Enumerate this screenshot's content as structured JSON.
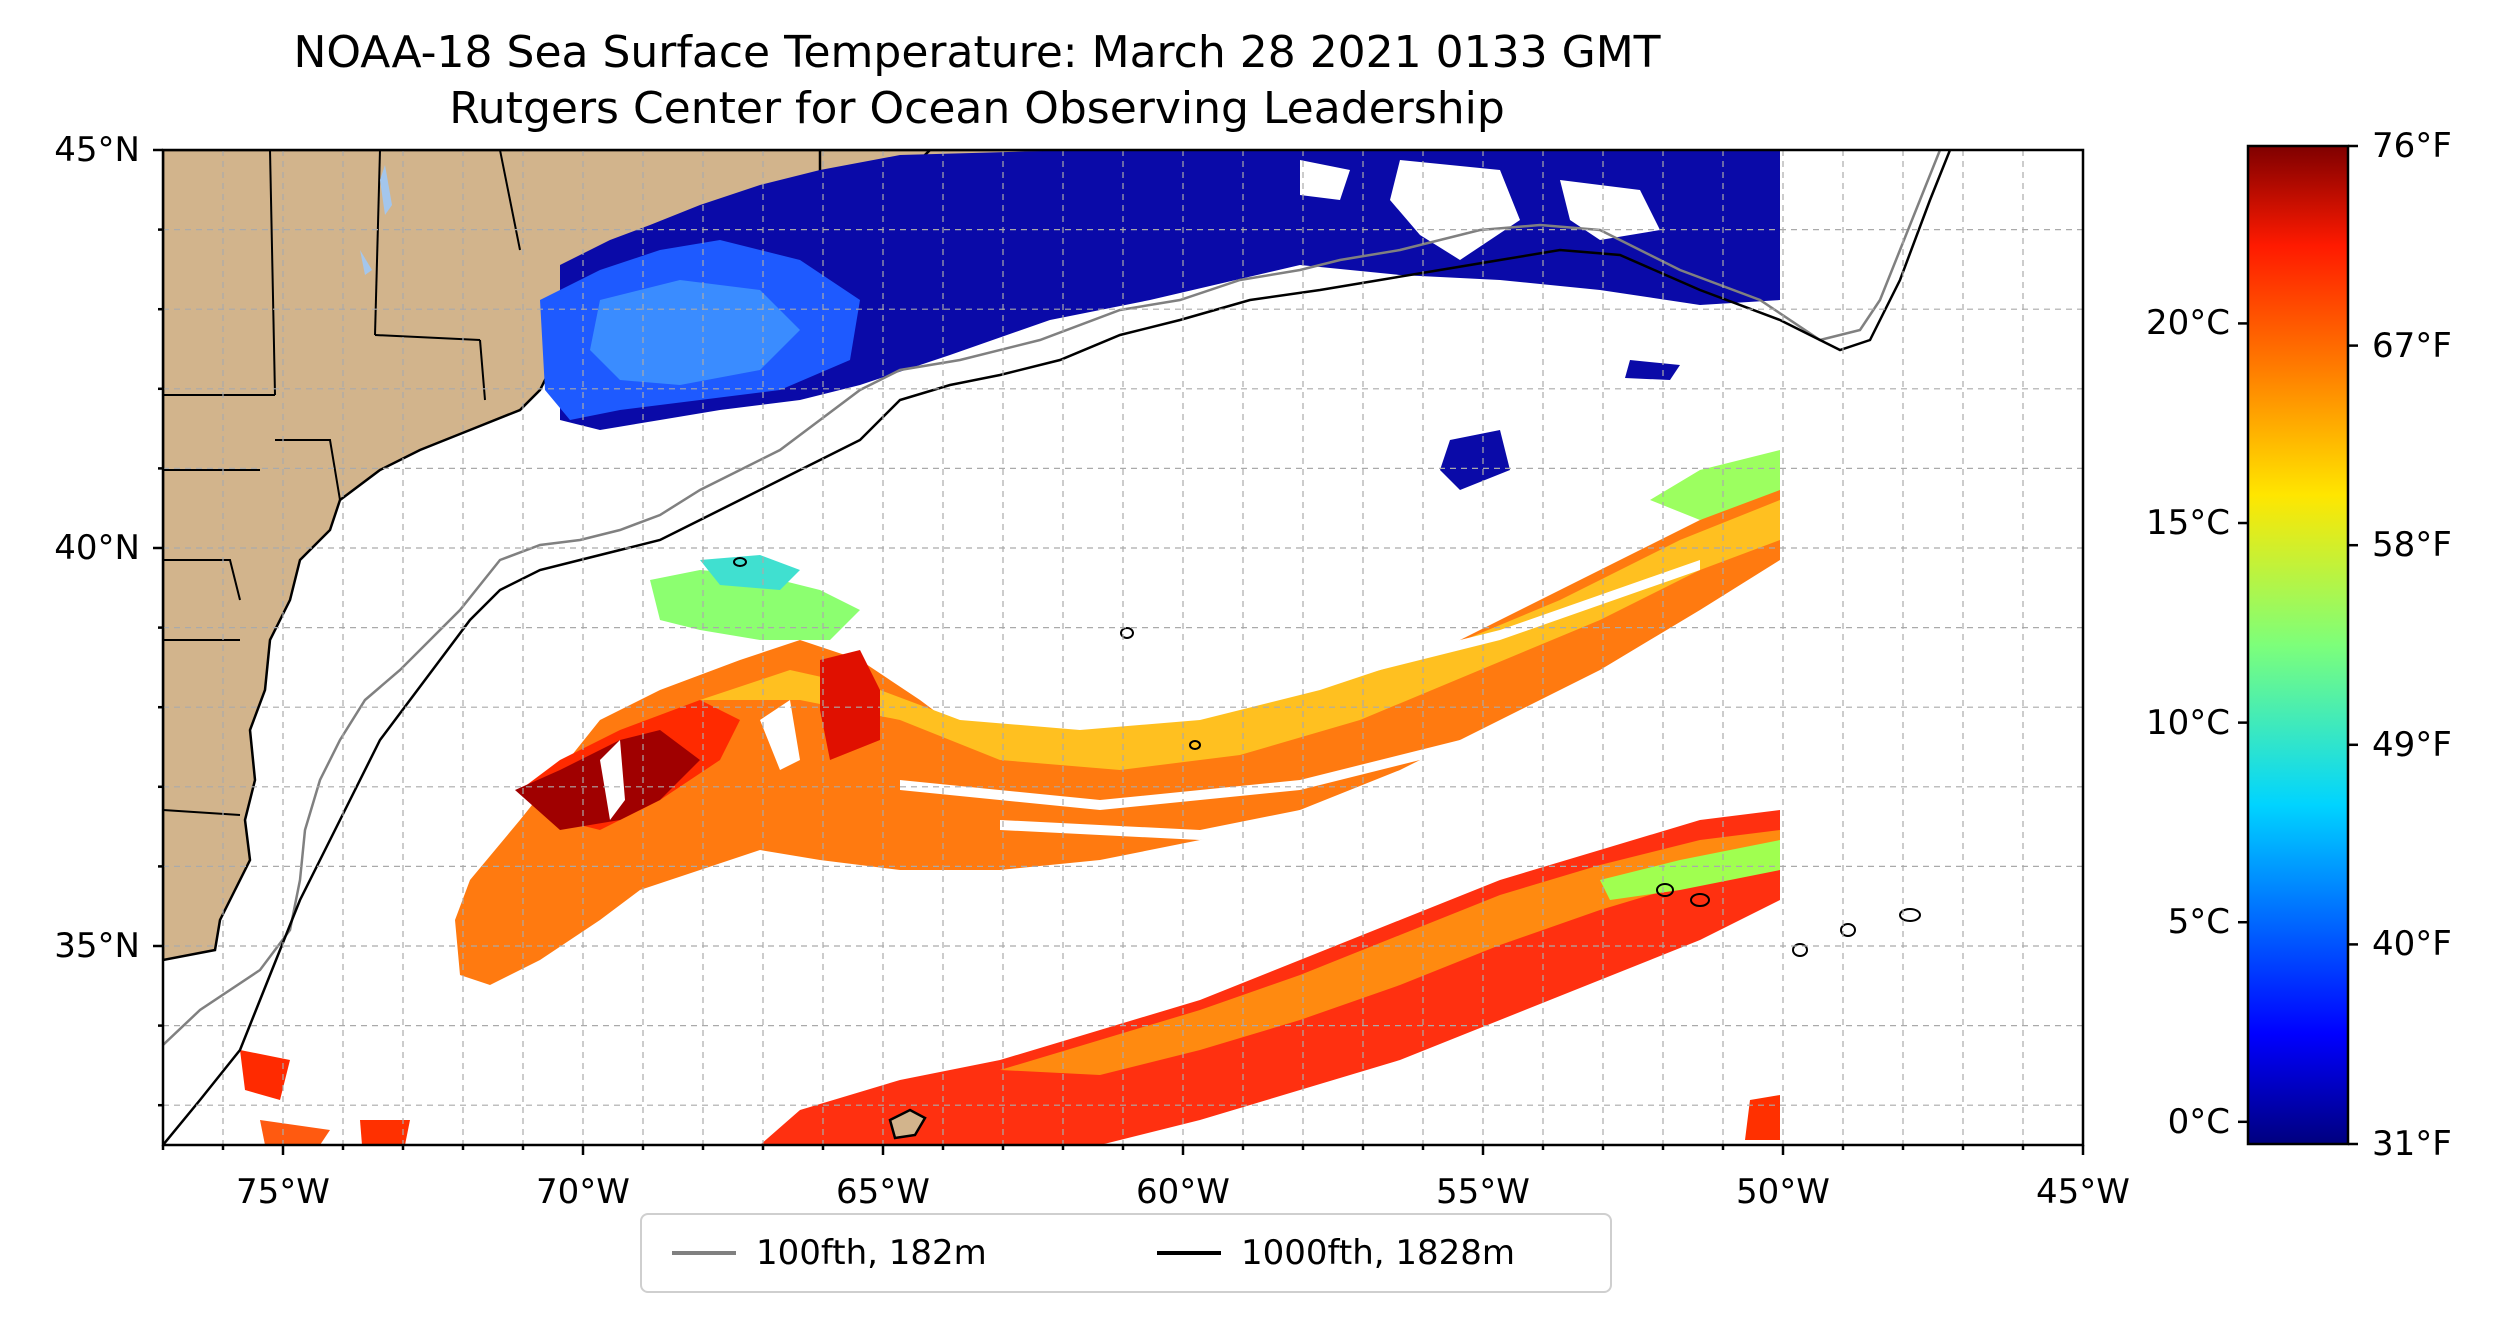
{
  "title": {
    "line1": "NOAA-18 Sea Surface Temperature: March 28 2021 0133 GMT",
    "line2": "Rutgers Center for Ocean Observing Leadership"
  },
  "map": {
    "extent": {
      "lon_min": -77,
      "lon_max": -45,
      "lat_min": 32.5,
      "lat_max": 45
    },
    "lat_ticks": [
      {
        "value": 45,
        "label": "45°N"
      },
      {
        "value": 40,
        "label": "40°N"
      },
      {
        "value": 35,
        "label": "35°N"
      }
    ],
    "lon_ticks": [
      {
        "value": -75,
        "label": "75°W"
      },
      {
        "value": -70,
        "label": "70°W"
      },
      {
        "value": -65,
        "label": "65°W"
      },
      {
        "value": -60,
        "label": "60°W"
      },
      {
        "value": -55,
        "label": "55°W"
      },
      {
        "value": -50,
        "label": "50°W"
      },
      {
        "value": -45,
        "label": "45°W"
      }
    ],
    "grid": "dashed, every 1°",
    "colors": {
      "land": "#d2b48c",
      "ocean_no_data": "#ffffff",
      "lakes": "#a4c6ec",
      "coast": "#000000"
    }
  },
  "colorbar": {
    "celsius_ticks": [
      {
        "value": 0,
        "label": "0°C"
      },
      {
        "value": 5,
        "label": "5°C"
      },
      {
        "value": 10,
        "label": "10°C"
      },
      {
        "value": 15,
        "label": "15°C"
      },
      {
        "value": 20,
        "label": "20°C"
      }
    ],
    "fahrenheit_ticks": [
      {
        "value": 31,
        "label": "31°F"
      },
      {
        "value": 40,
        "label": "40°F"
      },
      {
        "value": 49,
        "label": "49°F"
      },
      {
        "value": 58,
        "label": "58°F"
      },
      {
        "value": 67,
        "label": "67°F"
      },
      {
        "value": 76,
        "label": "76°F"
      }
    ],
    "range_f": [
      31,
      76
    ],
    "colormap": "jet"
  },
  "legend": {
    "items": [
      {
        "label": "100fth, 182m",
        "color": "#808080"
      },
      {
        "label": "1000fth, 1828m",
        "color": "#000000"
      }
    ]
  }
}
